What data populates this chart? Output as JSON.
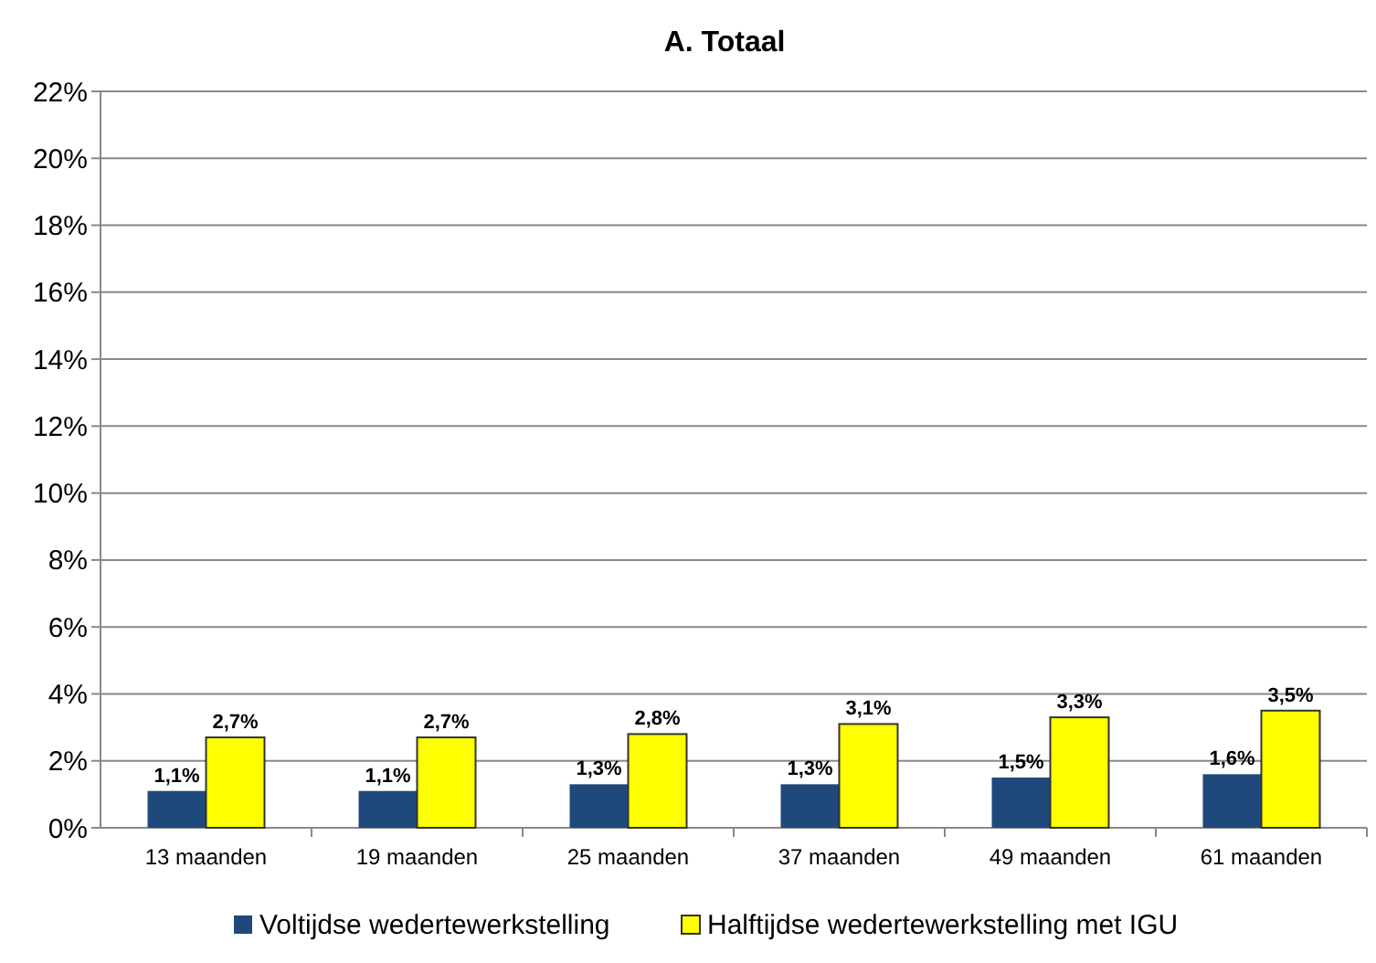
{
  "chart_data": {
    "type": "bar",
    "title": "A. Totaal",
    "categories": [
      "13 maanden",
      "19 maanden",
      "25 maanden",
      "37 maanden",
      "49 maanden",
      "61 maanden"
    ],
    "series": [
      {
        "name": "Voltijdse wedertewerkstelling",
        "color": "#1f497d",
        "values": [
          1.1,
          1.1,
          1.3,
          1.3,
          1.5,
          1.6
        ],
        "value_labels": [
          "1,1%",
          "1,1%",
          "1,3%",
          "1,3%",
          "1,5%",
          "1,6%"
        ]
      },
      {
        "name": "Halftijdse wedertewerkstelling met IGU",
        "color": "#ffff00",
        "values": [
          2.7,
          2.7,
          2.8,
          3.1,
          3.3,
          3.5
        ],
        "value_labels": [
          "2,7%",
          "2,7%",
          "2,8%",
          "3,1%",
          "3,3%",
          "3,5%"
        ]
      }
    ],
    "ylim": [
      0,
      22
    ],
    "yticks": [
      {
        "value": 0,
        "label": "0%"
      },
      {
        "value": 2,
        "label": "2%"
      },
      {
        "value": 4,
        "label": "4%"
      },
      {
        "value": 6,
        "label": "6%"
      },
      {
        "value": 8,
        "label": "8%"
      },
      {
        "value": 10,
        "label": "10%"
      },
      {
        "value": 12,
        "label": "12%"
      },
      {
        "value": 14,
        "label": "14%"
      },
      {
        "value": 16,
        "label": "16%"
      },
      {
        "value": 18,
        "label": "18%"
      },
      {
        "value": 20,
        "label": "20%"
      },
      {
        "value": 22,
        "label": "22%"
      }
    ],
    "grid": "y",
    "legend": "bottom"
  }
}
